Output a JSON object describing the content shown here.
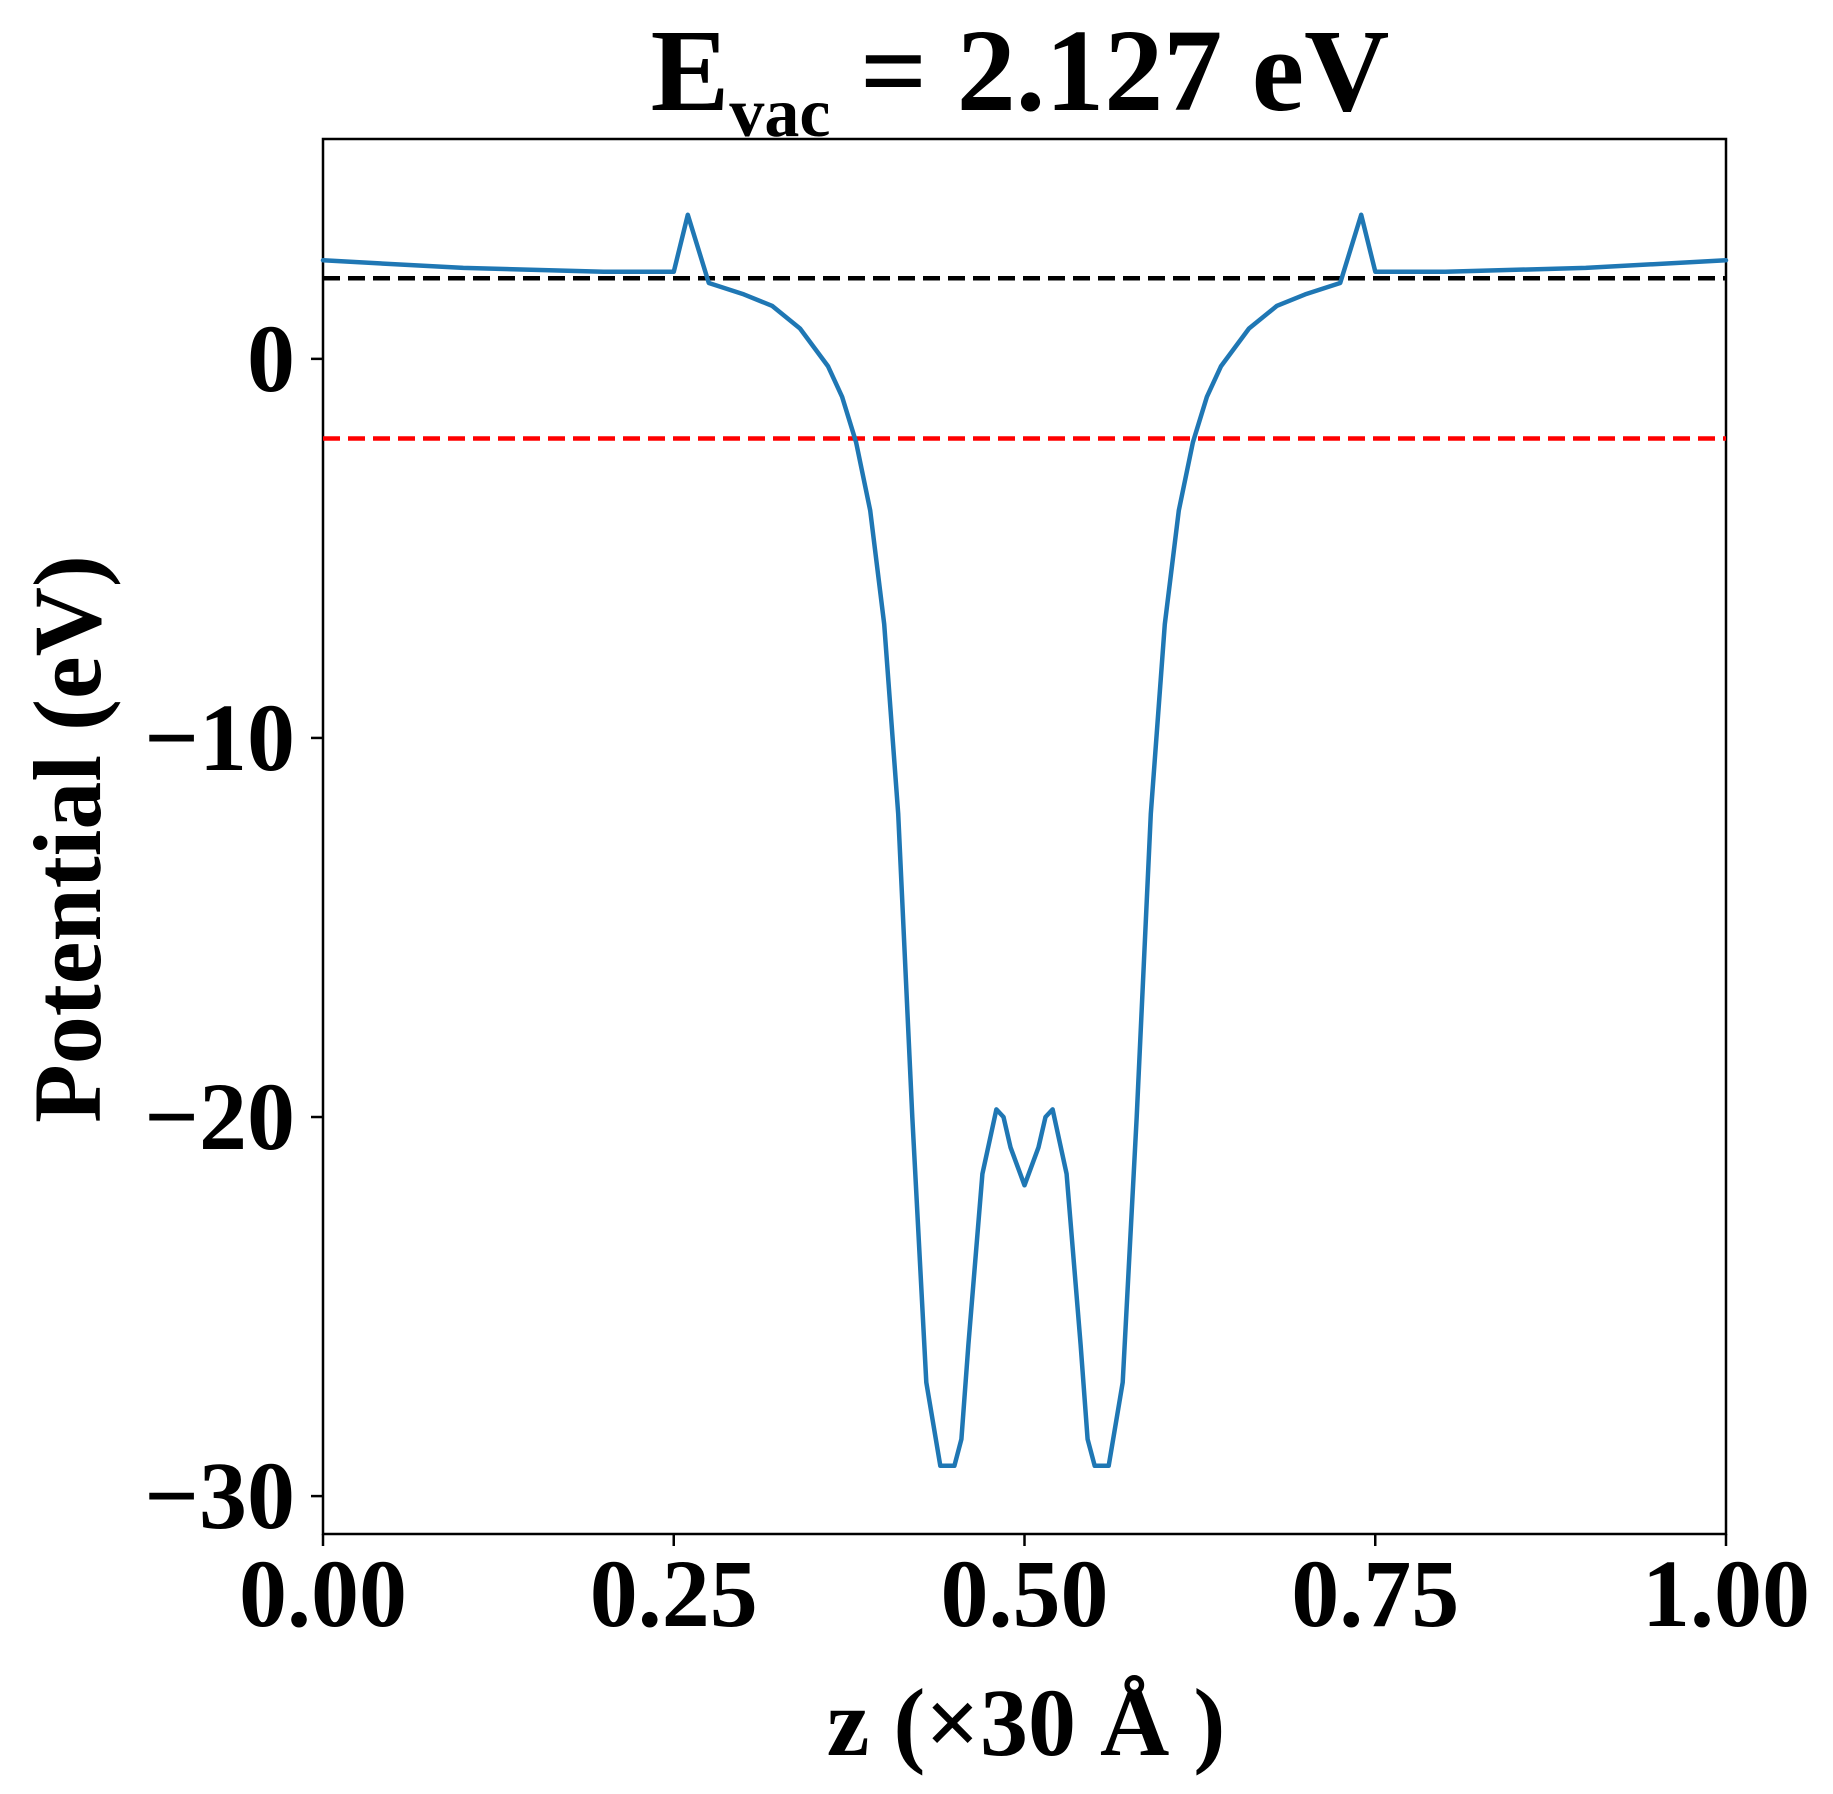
{
  "chart_data": {
    "type": "line",
    "title": {
      "main": "E",
      "subscript": "vac",
      "rest": " = 2.127 eV"
    },
    "xlabel": "z (×30 Å )",
    "ylabel": "Potential (eV)",
    "xlim": [
      0.0,
      1.0
    ],
    "ylim": [
      -31.0,
      5.8
    ],
    "xticks": [
      0.0,
      0.25,
      0.5,
      0.75,
      1.0
    ],
    "xtick_labels": [
      "0.00",
      "0.25",
      "0.50",
      "0.75",
      "1.00"
    ],
    "yticks": [
      -30,
      -20,
      -10,
      0
    ],
    "ytick_labels": [
      "−30",
      "−20",
      "−10",
      "0"
    ],
    "grid": false,
    "series": [
      {
        "color": "#1f77b4",
        "x": [
          0.0,
          0.1,
          0.2,
          0.25,
          0.26,
          0.275,
          0.3,
          0.32,
          0.34,
          0.36,
          0.37,
          0.38,
          0.39,
          0.4,
          0.41,
          0.42,
          0.43,
          0.44,
          0.45,
          0.455,
          0.46,
          0.47,
          0.48,
          0.485,
          0.49,
          0.5,
          0.51,
          0.515,
          0.52,
          0.53,
          0.54,
          0.545,
          0.55,
          0.56,
          0.57,
          0.58,
          0.59,
          0.6,
          0.61,
          0.62,
          0.63,
          0.64,
          0.66,
          0.68,
          0.7,
          0.725,
          0.74,
          0.75,
          0.8,
          0.9,
          1.0
        ],
        "y": [
          2.6,
          2.4,
          2.3,
          2.3,
          3.8,
          2.0,
          1.7,
          1.4,
          0.8,
          -0.2,
          -1.0,
          -2.2,
          -4.0,
          -7.0,
          -12.0,
          -20.0,
          -27.0,
          -29.2,
          -29.2,
          -28.5,
          -26.0,
          -21.5,
          -19.8,
          -20.0,
          -20.8,
          -21.8,
          -20.8,
          -20.0,
          -19.8,
          -21.5,
          -26.0,
          -28.5,
          -29.2,
          -29.2,
          -27.0,
          -20.0,
          -12.0,
          -7.0,
          -4.0,
          -2.2,
          -1.0,
          -0.2,
          0.8,
          1.4,
          1.7,
          2.0,
          3.8,
          2.3,
          2.3,
          2.4,
          2.6
        ]
      }
    ],
    "hlines": [
      {
        "y": 2.127,
        "color": "#000000",
        "style": "dashed"
      },
      {
        "y": -2.1,
        "color": "#ff0000",
        "style": "dashed"
      }
    ]
  }
}
